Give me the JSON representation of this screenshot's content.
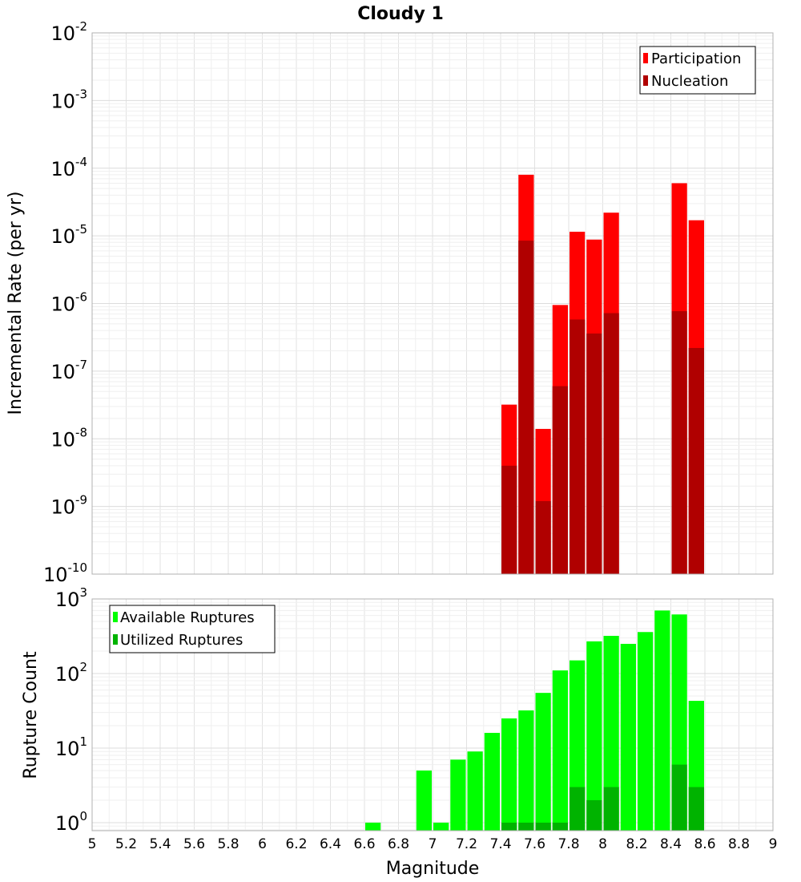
{
  "chart_data": [
    {
      "id": "top",
      "type": "bar",
      "title": "Cloudy 1",
      "xlabel": "",
      "ylabel": "Incremental Rate (per yr)",
      "yscale": "log",
      "ylim": [
        1e-10,
        0.01
      ],
      "xlim": [
        5,
        9
      ],
      "bar_width": 0.1,
      "y_ticks": [
        {
          "base": "10",
          "exp": "-10",
          "value": 1e-10
        },
        {
          "base": "10",
          "exp": "-9",
          "value": 1e-09
        },
        {
          "base": "10",
          "exp": "-8",
          "value": 1e-08
        },
        {
          "base": "10",
          "exp": "-7",
          "value": 1e-07
        },
        {
          "base": "10",
          "exp": "-6",
          "value": 1e-06
        },
        {
          "base": "10",
          "exp": "-5",
          "value": 1e-05
        },
        {
          "base": "10",
          "exp": "-4",
          "value": 0.0001
        },
        {
          "base": "10",
          "exp": "-3",
          "value": 0.001
        },
        {
          "base": "10",
          "exp": "-2",
          "value": 0.01
        }
      ],
      "legend": {
        "position": "top-right"
      },
      "series": [
        {
          "name": "Participation",
          "color": "#ff0000",
          "points": [
            [
              7.45,
              3.2e-08
            ],
            [
              7.55,
              8e-05
            ],
            [
              7.65,
              1.4e-08
            ],
            [
              7.75,
              9.5e-07
            ],
            [
              7.85,
              1.15e-05
            ],
            [
              7.95,
              8.8e-06
            ],
            [
              8.05,
              2.2e-05
            ],
            [
              8.45,
              6e-05
            ],
            [
              8.55,
              1.7e-05
            ]
          ]
        },
        {
          "name": "Nucleation",
          "color": "#b00000",
          "points": [
            [
              7.45,
              4e-09
            ],
            [
              7.55,
              8.5e-06
            ],
            [
              7.65,
              1.2e-09
            ],
            [
              7.75,
              6e-08
            ],
            [
              7.85,
              5.8e-07
            ],
            [
              7.95,
              3.6e-07
            ],
            [
              8.05,
              7.2e-07
            ],
            [
              8.45,
              7.7e-07
            ],
            [
              8.55,
              2.2e-07
            ]
          ]
        }
      ]
    },
    {
      "id": "bottom",
      "type": "bar",
      "title": "",
      "xlabel": "Magnitude",
      "ylabel": "Rupture Count",
      "yscale": "log",
      "ylim": [
        0.78,
        1000
      ],
      "xlim": [
        5,
        9
      ],
      "bar_width": 0.1,
      "y_ticks": [
        {
          "base": "10",
          "exp": "0",
          "value": 1
        },
        {
          "base": "10",
          "exp": "1",
          "value": 10
        },
        {
          "base": "10",
          "exp": "2",
          "value": 100
        },
        {
          "base": "10",
          "exp": "3",
          "value": 1000
        }
      ],
      "x_ticks": [
        "5",
        "5.2",
        "5.4",
        "5.6",
        "5.8",
        "6",
        "6.2",
        "6.4",
        "6.6",
        "6.8",
        "7",
        "7.2",
        "7.4",
        "7.6",
        "7.8",
        "8",
        "8.2",
        "8.4",
        "8.6",
        "8.8",
        "9"
      ],
      "legend": {
        "position": "top-left"
      },
      "series": [
        {
          "name": "Available Ruptures",
          "color": "#00ff00",
          "points": [
            [
              6.65,
              1
            ],
            [
              6.95,
              5
            ],
            [
              7.05,
              1
            ],
            [
              7.15,
              7
            ],
            [
              7.25,
              9
            ],
            [
              7.35,
              16
            ],
            [
              7.45,
              25
            ],
            [
              7.55,
              32
            ],
            [
              7.65,
              55
            ],
            [
              7.75,
              110
            ],
            [
              7.85,
              150
            ],
            [
              7.95,
              270
            ],
            [
              8.05,
              320
            ],
            [
              8.15,
              250
            ],
            [
              8.25,
              360
            ],
            [
              8.35,
              700
            ],
            [
              8.45,
              620
            ],
            [
              8.55,
              43
            ]
          ]
        },
        {
          "name": "Utilized Ruptures",
          "color": "#00b300",
          "points": [
            [
              7.45,
              1
            ],
            [
              7.55,
              1
            ],
            [
              7.65,
              1
            ],
            [
              7.75,
              1
            ],
            [
              7.85,
              3
            ],
            [
              7.95,
              2
            ],
            [
              8.05,
              3
            ],
            [
              8.45,
              6
            ],
            [
              8.55,
              3
            ]
          ]
        }
      ]
    }
  ]
}
